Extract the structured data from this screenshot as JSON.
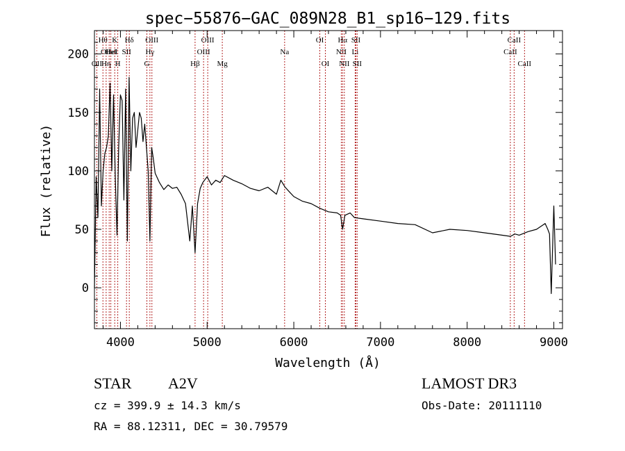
{
  "chart_data": {
    "type": "line",
    "title": "spec−55876−GAC_089N28_B1_sp16−129.fits",
    "xlabel": "Wavelength (Å)",
    "ylabel": "Flux (relative)",
    "xlim": [
      3700,
      9100
    ],
    "ylim": [
      -35,
      220
    ],
    "xticks": [
      4000,
      5000,
      6000,
      7000,
      8000,
      9000
    ],
    "yticks": [
      0,
      50,
      100,
      150,
      200
    ],
    "line_color": "#000000",
    "marker_color": "#b22222",
    "spectral_lines": [
      {
        "label": "OII",
        "wavelength": 3727,
        "row": 3
      },
      {
        "label": "Hθ",
        "wavelength": 3798,
        "row": 1
      },
      {
        "label": "Hη",
        "wavelength": 3835,
        "row": 3
      },
      {
        "label": "OHeI",
        "wavelength": 3870,
        "row": 2
      },
      {
        "label": "HeI",
        "wavelength": 3889,
        "row": 2
      },
      {
        "label": "K",
        "wavelength": 3934,
        "row": 1
      },
      {
        "label": "H",
        "wavelength": 3969,
        "row": 3
      },
      {
        "label": "SII",
        "wavelength": 4070,
        "row": 2
      },
      {
        "label": "Hδ",
        "wavelength": 4102,
        "row": 1
      },
      {
        "label": "G",
        "wavelength": 4305,
        "row": 3
      },
      {
        "label": "Hγ",
        "wavelength": 4340,
        "row": 2
      },
      {
        "label": "OIII",
        "wavelength": 4363,
        "row": 1
      },
      {
        "label": "Hβ",
        "wavelength": 4861,
        "row": 3
      },
      {
        "label": "OIII",
        "wavelength": 4959,
        "row": 2
      },
      {
        "label": "OIII",
        "wavelength": 5007,
        "row": 1
      },
      {
        "label": "Mg",
        "wavelength": 5175,
        "row": 3
      },
      {
        "label": "Na",
        "wavelength": 5894,
        "row": 2
      },
      {
        "label": "OI",
        "wavelength": 6300,
        "row": 1
      },
      {
        "label": "OI",
        "wavelength": 6364,
        "row": 3
      },
      {
        "label": "NII",
        "wavelength": 6548,
        "row": 2
      },
      {
        "label": "Hα",
        "wavelength": 6563,
        "row": 1
      },
      {
        "label": "NII",
        "wavelength": 6583,
        "row": 3
      },
      {
        "label": "SII",
        "wavelength": 6716,
        "row": 1
      },
      {
        "label": "Li",
        "wavelength": 6708,
        "row": 2
      },
      {
        "label": "SII",
        "wavelength": 6731,
        "row": 3
      },
      {
        "label": "CaII",
        "wavelength": 8498,
        "row": 2
      },
      {
        "label": "CaII",
        "wavelength": 8542,
        "row": 1
      },
      {
        "label": "CaII",
        "wavelength": 8662,
        "row": 3
      }
    ],
    "spectrum": {
      "x": [
        3700,
        3720,
        3740,
        3760,
        3780,
        3800,
        3820,
        3840,
        3860,
        3880,
        3900,
        3920,
        3940,
        3960,
        3980,
        4000,
        4020,
        4040,
        4060,
        4080,
        4100,
        4120,
        4140,
        4160,
        4180,
        4200,
        4220,
        4240,
        4260,
        4280,
        4300,
        4320,
        4340,
        4360,
        4380,
        4400,
        4450,
        4500,
        4550,
        4600,
        4650,
        4700,
        4750,
        4800,
        4830,
        4861,
        4890,
        4920,
        4950,
        5000,
        5050,
        5100,
        5150,
        5200,
        5300,
        5400,
        5500,
        5600,
        5700,
        5800,
        5850,
        5900,
        5950,
        6000,
        6100,
        6200,
        6300,
        6400,
        6500,
        6540,
        6563,
        6590,
        6650,
        6700,
        6800,
        7000,
        7200,
        7400,
        7600,
        7800,
        8000,
        8200,
        8400,
        8500,
        8550,
        8600,
        8700,
        8800,
        8900,
        8930,
        8950,
        8970,
        9000,
        9020
      ],
      "y": [
        0,
        95,
        60,
        170,
        70,
        100,
        115,
        120,
        130,
        175,
        100,
        165,
        95,
        45,
        120,
        165,
        160,
        75,
        170,
        40,
        180,
        100,
        145,
        150,
        120,
        135,
        150,
        145,
        125,
        140,
        120,
        100,
        40,
        120,
        110,
        98,
        90,
        84,
        88,
        85,
        86,
        80,
        72,
        40,
        70,
        30,
        72,
        85,
        90,
        95,
        88,
        92,
        90,
        96,
        92,
        89,
        85,
        83,
        86,
        80,
        92,
        86,
        82,
        78,
        74,
        72,
        68,
        65,
        64,
        62,
        50,
        62,
        64,
        60,
        59,
        57,
        55,
        54,
        47,
        50,
        49,
        47,
        45,
        44,
        46,
        45,
        48,
        50,
        55,
        50,
        46,
        -5,
        70,
        20
      ]
    }
  },
  "info": {
    "object_class": "STAR",
    "subclass": "A2V",
    "survey": "LAMOST DR3",
    "redshift": "cz = 399.9 ± 14.3 km/s",
    "obs_date": "Obs-Date: 20111110",
    "coords": "RA =  88.12311, DEC =  30.79579"
  }
}
